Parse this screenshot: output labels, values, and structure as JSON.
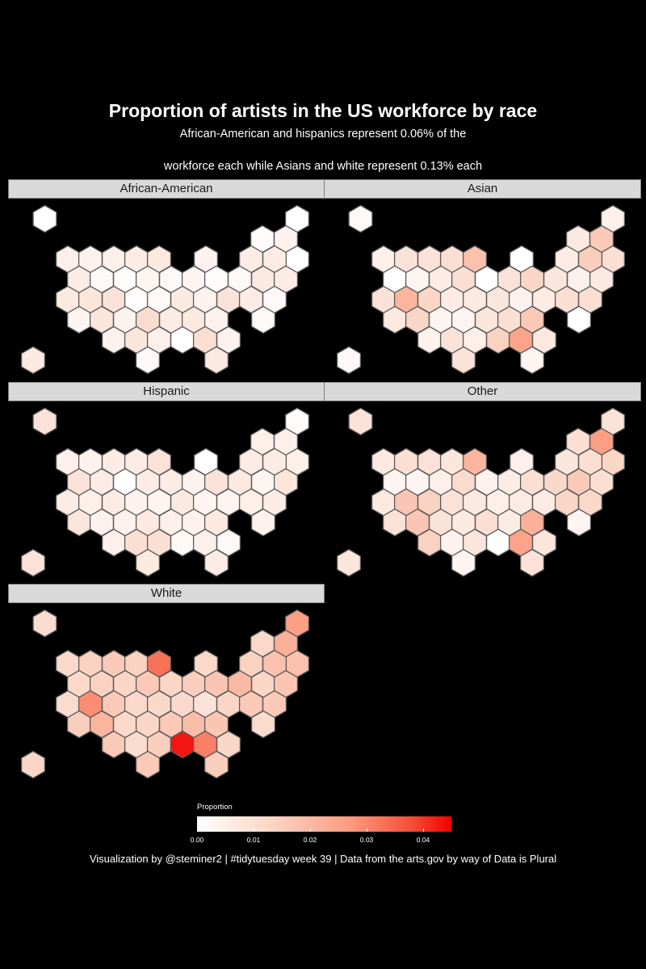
{
  "title": "Proportion of artists in the US workforce by race",
  "subtitle_line1": "African-American and hispanics represent 0.06% of the",
  "subtitle_line2": "workforce each while Asians and white represent 0.13% each",
  "caption": "Visualization by @steminer2 | #tidytuesday week 39 | Data from the arts.gov by way of Data is Plural",
  "legend": {
    "title": "Proportion",
    "ticks": [
      "0.00",
      "0.01",
      "0.02",
      "0.03",
      "0.04"
    ],
    "tick_values": [
      0,
      0.01,
      0.02,
      0.03,
      0.04
    ],
    "range": [
      0,
      0.045
    ],
    "colors": {
      "low": "#ffffff",
      "high": "#f00000"
    }
  },
  "chart_data": {
    "type": "heatmap",
    "chart_kind": "hexbin state map (facetted)",
    "facets": [
      {
        "name": "African-American",
        "values": [
          0.0,
          0.0,
          0.001,
          0.004,
          0.005,
          0.004,
          0.005,
          0.006,
          0.007,
          0.004,
          0.0,
          0.006,
          0.006,
          0.006,
          0.002,
          0.001,
          0.003,
          0.002,
          0.003,
          0.001,
          0.002,
          0.007,
          0.006,
          0.007,
          0.008,
          0.009,
          0.001,
          0.002,
          0.007,
          0.004,
          0.009,
          0.006,
          0.002,
          0.003,
          0.008,
          0.004,
          0.011,
          0.006,
          0.007,
          0.004,
          0.002,
          0.004,
          0.008,
          0.005,
          0.0,
          0.01,
          0.004,
          0.002,
          0.007,
          0.007,
          0.003
        ]
      },
      {
        "name": "Asian",
        "values": [
          0.002,
          0.005,
          0.007,
          0.016,
          0.005,
          0.009,
          0.009,
          0.01,
          0.018,
          0.0,
          0.01,
          0.006,
          0.015,
          0.0,
          0.003,
          0.006,
          0.01,
          0.0,
          0.009,
          0.013,
          0.008,
          0.005,
          0.007,
          0.009,
          0.021,
          0.013,
          0.006,
          0.007,
          0.008,
          0.004,
          0.006,
          0.01,
          0.01,
          0.007,
          0.013,
          0.003,
          0.003,
          0.008,
          0.01,
          0.016,
          0.0,
          0.004,
          0.009,
          0.005,
          0.014,
          0.025,
          0.007,
          0.009,
          0.003,
          0.002,
          0.006
        ]
      },
      {
        "name": "Hispanic",
        "values": [
          0.009,
          0.001,
          0.005,
          0.005,
          0.005,
          0.004,
          0.006,
          0.006,
          0.009,
          0.0,
          0.005,
          0.006,
          0.006,
          0.009,
          0.006,
          0.0,
          0.006,
          0.006,
          0.004,
          0.009,
          0.007,
          0.003,
          0.008,
          0.006,
          0.005,
          0.006,
          0.004,
          0.003,
          0.007,
          0.003,
          0.003,
          0.005,
          0.006,
          0.008,
          0.004,
          0.004,
          0.007,
          0.005,
          0.004,
          0.007,
          0.004,
          0.005,
          0.01,
          0.01,
          0.002,
          0.005,
          0.002,
          0.007,
          0.006,
          0.009,
          0.003
        ]
      },
      {
        "name": "Other",
        "values": [
          0.009,
          0.009,
          0.01,
          0.026,
          0.007,
          0.01,
          0.009,
          0.008,
          0.021,
          0.005,
          0.013,
          0.008,
          0.01,
          0.003,
          0.003,
          0.005,
          0.011,
          0.004,
          0.006,
          0.01,
          0.012,
          0.016,
          0.01,
          0.007,
          0.017,
          0.014,
          0.009,
          0.007,
          0.005,
          0.006,
          0.006,
          0.013,
          0.012,
          0.009,
          0.017,
          0.009,
          0.007,
          0.01,
          0.006,
          0.022,
          0.003,
          0.014,
          0.004,
          0.008,
          0.0,
          0.025,
          0.008,
          0.003,
          0.009,
          0.008,
          0.01
        ]
      },
      {
        "name": "White",
        "values": [
          0.011,
          0.026,
          0.012,
          0.022,
          0.012,
          0.014,
          0.016,
          0.014,
          0.033,
          0.012,
          0.018,
          0.014,
          0.018,
          0.012,
          0.014,
          0.013,
          0.016,
          0.013,
          0.015,
          0.017,
          0.02,
          0.013,
          0.017,
          0.011,
          0.029,
          0.016,
          0.012,
          0.012,
          0.012,
          0.009,
          0.013,
          0.016,
          0.016,
          0.015,
          0.021,
          0.012,
          0.013,
          0.016,
          0.019,
          0.017,
          0.011,
          0.016,
          0.011,
          0.015,
          0.043,
          0.031,
          0.013,
          0.016,
          0.015,
          0.013,
          0.016
        ]
      }
    ],
    "color_scale": {
      "min": 0,
      "max": 0.045,
      "low": "#ffffff",
      "high": "#f00000"
    }
  }
}
